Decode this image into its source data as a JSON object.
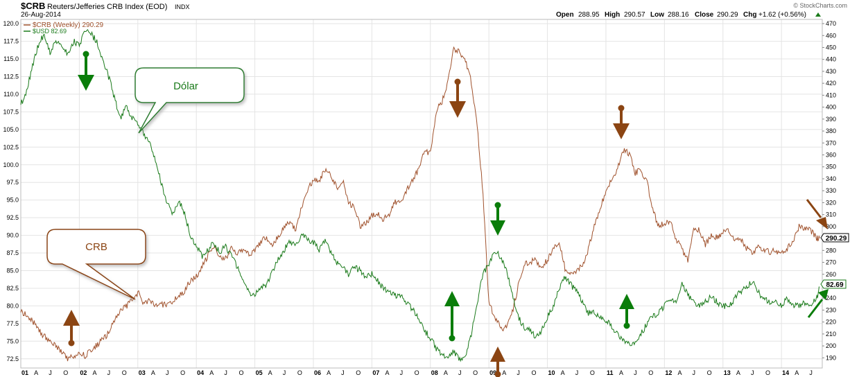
{
  "header": {
    "symbol": "$CRB",
    "name": "Reuters/Jefferies CRB Index (EOD)",
    "exchange": "INDX",
    "date": "26-Aug-2014",
    "copyright": "© StockCharts.com",
    "ohlc": {
      "open_label": "Open",
      "open": "288.95",
      "high_label": "High",
      "high": "290.57",
      "low_label": "Low",
      "low": "288.16",
      "close_label": "Close",
      "close": "290.29",
      "chg_label": "Chg",
      "chg": "+1.62 (+0.56%)"
    }
  },
  "legend": {
    "items": [
      {
        "label": "$CRB (Weekly) 290.29",
        "color": "#a0522d"
      },
      {
        "label": "$USD 82.69",
        "color": "#1a7a1a"
      }
    ]
  },
  "callouts": {
    "dolar": "Dólar",
    "crb": "CRB"
  },
  "price_tags": {
    "crb": "290.29",
    "usd": "82.69"
  },
  "colors": {
    "crb": "#a0522d",
    "usd": "#1a7a1a",
    "arrow_green": "#0a7d0a",
    "arrow_brown": "#8b4513",
    "grid": "#e4e4e4"
  },
  "chart_data": {
    "type": "line",
    "title": "$CRB Reuters/Jefferies CRB Index (EOD)",
    "x_tick_labels": [
      "01",
      "A",
      "J",
      "O",
      "02",
      "A",
      "J",
      "O",
      "03",
      "A",
      "J",
      "O",
      "04",
      "A",
      "J",
      "O",
      "05",
      "A",
      "J",
      "O",
      "06",
      "A",
      "J",
      "O",
      "07",
      "A",
      "J",
      "O",
      "08",
      "A",
      "J",
      "O",
      "09",
      "A",
      "J",
      "O",
      "10",
      "A",
      "J",
      "O",
      "11",
      "A",
      "J",
      "O",
      "12",
      "A",
      "J",
      "O",
      "13",
      "A",
      "J",
      "O",
      "14",
      "A",
      "J"
    ],
    "y_left_ticks": [
      "72.5",
      "75.0",
      "77.5",
      "80.0",
      "82.5",
      "85.0",
      "87.5",
      "90.0",
      "92.5",
      "95.0",
      "97.5",
      "100.0",
      "102.5",
      "105.0",
      "107.5",
      "110.0",
      "112.5",
      "115.0",
      "117.5",
      "120.0"
    ],
    "y_left_range": [
      71.2,
      120.6
    ],
    "y_right_ticks": [
      "190",
      "200",
      "210",
      "220",
      "230",
      "240",
      "250",
      "260",
      "270",
      "280",
      "290",
      "300",
      "310",
      "320",
      "330",
      "340",
      "350",
      "360",
      "370",
      "380",
      "390",
      "400",
      "410",
      "420",
      "430",
      "440",
      "450",
      "460",
      "470"
    ],
    "y_right_range": [
      181.5,
      473.5
    ],
    "series": [
      {
        "name": "$USD",
        "axis": "left",
        "x": [
          2001.0,
          2001.1,
          2001.2,
          2001.3,
          2001.4,
          2001.5,
          2001.6,
          2001.7,
          2001.8,
          2001.9,
          2002.0,
          2002.1,
          2002.2,
          2002.3,
          2002.4,
          2002.5,
          2002.6,
          2002.7,
          2002.8,
          2002.9,
          2003.0,
          2003.1,
          2003.2,
          2003.3,
          2003.4,
          2003.5,
          2003.6,
          2003.7,
          2003.8,
          2003.9,
          2004.0,
          2004.1,
          2004.2,
          2004.3,
          2004.4,
          2004.5,
          2004.6,
          2004.7,
          2004.8,
          2004.9,
          2005.0,
          2005.1,
          2005.2,
          2005.3,
          2005.4,
          2005.5,
          2005.6,
          2005.7,
          2005.8,
          2005.9,
          2006.0,
          2006.1,
          2006.2,
          2006.3,
          2006.4,
          2006.5,
          2006.6,
          2006.7,
          2006.8,
          2006.9,
          2007.0,
          2007.1,
          2007.2,
          2007.3,
          2007.4,
          2007.5,
          2007.6,
          2007.7,
          2007.8,
          2007.9,
          2008.0,
          2008.1,
          2008.2,
          2008.3,
          2008.4,
          2008.5,
          2008.6,
          2008.7,
          2008.8,
          2008.9,
          2009.0,
          2009.1,
          2009.2,
          2009.3,
          2009.4,
          2009.5,
          2009.6,
          2009.7,
          2009.8,
          2009.9,
          2010.0,
          2010.1,
          2010.2,
          2010.3,
          2010.4,
          2010.5,
          2010.6,
          2010.7,
          2010.8,
          2010.9,
          2011.0,
          2011.1,
          2011.2,
          2011.3,
          2011.4,
          2011.5,
          2011.6,
          2011.7,
          2011.8,
          2011.9,
          2012.0,
          2012.1,
          2012.2,
          2012.3,
          2012.4,
          2012.5,
          2012.6,
          2012.7,
          2012.8,
          2012.9,
          2013.0,
          2013.1,
          2013.2,
          2013.3,
          2013.4,
          2013.5,
          2013.6,
          2013.7,
          2013.8,
          2013.9,
          2014.0,
          2014.1,
          2014.2,
          2014.3,
          2014.4,
          2014.5,
          2014.6,
          2014.65
        ],
        "values": [
          108.5,
          110.5,
          114.0,
          117.0,
          118.5,
          116.0,
          117.5,
          117.0,
          115.5,
          117.5,
          117.0,
          119.0,
          118.5,
          117.5,
          115.0,
          112.5,
          109.5,
          106.5,
          108.5,
          106.5,
          106.0,
          104.5,
          103.0,
          100.5,
          97.5,
          94.5,
          93.0,
          95.0,
          93.0,
          90.0,
          88.5,
          87.0,
          88.0,
          89.0,
          87.5,
          88.5,
          87.0,
          85.5,
          83.5,
          82.0,
          81.5,
          82.5,
          83.0,
          85.0,
          86.5,
          88.0,
          89.0,
          88.5,
          90.0,
          89.5,
          89.0,
          88.0,
          89.5,
          87.5,
          86.0,
          85.5,
          84.5,
          85.5,
          85.0,
          84.0,
          84.5,
          83.5,
          82.5,
          82.0,
          81.5,
          81.5,
          80.5,
          79.5,
          78.0,
          76.5,
          75.5,
          74.0,
          73.0,
          72.5,
          73.5,
          72.5,
          73.0,
          76.0,
          80.5,
          84.5,
          86.0,
          88.0,
          87.0,
          85.0,
          81.5,
          78.5,
          77.0,
          76.5,
          75.5,
          76.5,
          78.5,
          80.0,
          82.5,
          84.0,
          83.0,
          82.0,
          80.5,
          79.0,
          79.0,
          78.5,
          78.0,
          77.0,
          76.0,
          75.0,
          74.5,
          74.5,
          76.0,
          77.5,
          78.5,
          79.0,
          80.0,
          81.0,
          80.5,
          83.0,
          81.5,
          80.5,
          80.0,
          80.5,
          81.5,
          80.5,
          80.0,
          80.0,
          81.0,
          82.0,
          82.5,
          83.5,
          82.0,
          81.0,
          80.5,
          80.5,
          80.0,
          81.0,
          80.0,
          80.0,
          80.5,
          80.0,
          81.0,
          82.69
        ]
      },
      {
        "name": "$CRB (Weekly)",
        "axis": "right",
        "x": [
          2001.0,
          2001.1,
          2001.2,
          2001.3,
          2001.4,
          2001.5,
          2001.6,
          2001.7,
          2001.8,
          2001.9,
          2002.0,
          2002.1,
          2002.2,
          2002.3,
          2002.4,
          2002.5,
          2002.6,
          2002.7,
          2002.8,
          2002.9,
          2003.0,
          2003.1,
          2003.2,
          2003.3,
          2003.4,
          2003.5,
          2003.6,
          2003.7,
          2003.8,
          2003.9,
          2004.0,
          2004.1,
          2004.2,
          2004.3,
          2004.4,
          2004.5,
          2004.6,
          2004.7,
          2004.8,
          2004.9,
          2005.0,
          2005.1,
          2005.2,
          2005.3,
          2005.4,
          2005.5,
          2005.6,
          2005.7,
          2005.8,
          2005.9,
          2006.0,
          2006.1,
          2006.2,
          2006.3,
          2006.4,
          2006.5,
          2006.6,
          2006.7,
          2006.8,
          2006.9,
          2007.0,
          2007.1,
          2007.2,
          2007.3,
          2007.4,
          2007.5,
          2007.6,
          2007.7,
          2007.8,
          2007.9,
          2008.0,
          2008.1,
          2008.2,
          2008.3,
          2008.4,
          2008.5,
          2008.6,
          2008.7,
          2008.8,
          2008.9,
          2009.0,
          2009.1,
          2009.2,
          2009.3,
          2009.4,
          2009.5,
          2009.6,
          2009.7,
          2009.8,
          2009.9,
          2010.0,
          2010.1,
          2010.2,
          2010.3,
          2010.4,
          2010.5,
          2010.6,
          2010.7,
          2010.8,
          2010.9,
          2011.0,
          2011.1,
          2011.2,
          2011.3,
          2011.4,
          2011.5,
          2011.6,
          2011.7,
          2011.8,
          2011.9,
          2012.0,
          2012.1,
          2012.2,
          2012.3,
          2012.4,
          2012.5,
          2012.6,
          2012.7,
          2012.8,
          2012.9,
          2013.0,
          2013.1,
          2013.2,
          2013.3,
          2013.4,
          2013.5,
          2013.6,
          2013.7,
          2013.8,
          2013.9,
          2014.0,
          2014.1,
          2014.2,
          2014.3,
          2014.4,
          2014.5,
          2014.6,
          2014.65
        ],
        "values": [
          228,
          226,
          221,
          213,
          208,
          205,
          200,
          194,
          189,
          191,
          193,
          192,
          196,
          201,
          205,
          211,
          221,
          229,
          233,
          238,
          245,
          236,
          238,
          233,
          235,
          234,
          238,
          241,
          246,
          255,
          258,
          266,
          276,
          283,
          275,
          274,
          281,
          276,
          282,
          276,
          280,
          287,
          291,
          285,
          292,
          301,
          304,
          298,
          316,
          330,
          340,
          338,
          348,
          343,
          332,
          339,
          320,
          316,
          300,
          303,
          309,
          311,
          306,
          310,
          321,
          319,
          331,
          340,
          348,
          363,
          361,
          397,
          405,
          421,
          449,
          446,
          440,
          421,
          384,
          328,
          235,
          225,
          215,
          215,
          228,
          250,
          268,
          270,
          272,
          266,
          272,
          282,
          288,
          265,
          261,
          263,
          268,
          281,
          300,
          315,
          329,
          339,
          349,
          364,
          361,
          345,
          347,
          338,
          314,
          300,
          303,
          305,
          290,
          280,
          272,
          300,
          297,
          285,
          292,
          291,
          295,
          296,
          288,
          290,
          282,
          278,
          283,
          281,
          279,
          280,
          277,
          282,
          288,
          300,
          299,
          297,
          290,
          290.29
        ]
      }
    ],
    "annotations": [
      {
        "text": "Dólar"
      },
      {
        "text": "CRB"
      }
    ],
    "legend_position": "top-left",
    "grid": true
  }
}
